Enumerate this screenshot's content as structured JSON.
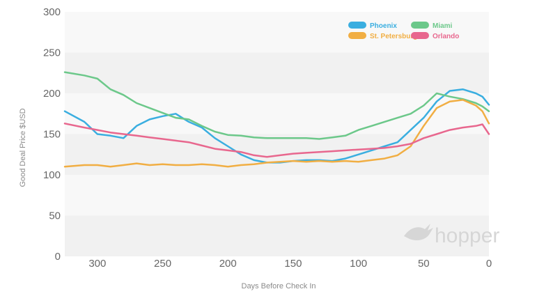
{
  "chart_data": {
    "type": "line",
    "xlabel": "Days Before Check In",
    "ylabel": "Good Deal Price $USD",
    "xlim": [
      325,
      0
    ],
    "ylim": [
      0,
      300
    ],
    "x_ticks": [
      300,
      250,
      200,
      150,
      100,
      50,
      0
    ],
    "y_ticks": [
      0,
      50,
      100,
      150,
      200,
      250,
      300
    ],
    "grid": "alternating horizontal bands",
    "legend_position": "top-right",
    "watermark": "hopper",
    "x": [
      325,
      310,
      300,
      290,
      280,
      270,
      260,
      250,
      240,
      230,
      220,
      210,
      200,
      190,
      180,
      170,
      160,
      150,
      140,
      130,
      120,
      110,
      100,
      90,
      80,
      70,
      60,
      50,
      40,
      30,
      20,
      10,
      5,
      0
    ],
    "series": [
      {
        "name": "Phoenix",
        "color": "#3aaee0",
        "values": [
          178,
          165,
          150,
          148,
          145,
          160,
          168,
          172,
          175,
          165,
          158,
          145,
          135,
          125,
          118,
          115,
          115,
          117,
          118,
          118,
          117,
          120,
          125,
          130,
          135,
          140,
          155,
          170,
          190,
          203,
          205,
          200,
          196,
          186
        ]
      },
      {
        "name": "Miami",
        "color": "#6cc88a",
        "values": [
          226,
          222,
          218,
          205,
          198,
          188,
          182,
          176,
          170,
          168,
          160,
          153,
          149,
          148,
          146,
          145,
          145,
          145,
          145,
          144,
          146,
          148,
          155,
          160,
          165,
          170,
          175,
          185,
          200,
          196,
          193,
          188,
          184,
          178
        ]
      },
      {
        "name": "St. Petersburg",
        "color": "#f1ae43",
        "values": [
          110,
          112,
          112,
          110,
          112,
          114,
          112,
          113,
          112,
          112,
          113,
          112,
          110,
          112,
          113,
          115,
          116,
          117,
          116,
          117,
          116,
          117,
          116,
          118,
          120,
          124,
          135,
          160,
          182,
          190,
          192,
          185,
          178,
          163
        ]
      },
      {
        "name": "Orlando",
        "color": "#e8678e",
        "values": [
          163,
          158,
          155,
          152,
          150,
          148,
          146,
          144,
          142,
          140,
          136,
          132,
          130,
          128,
          124,
          122,
          124,
          126,
          127,
          128,
          129,
          130,
          131,
          132,
          133,
          135,
          138,
          145,
          150,
          155,
          158,
          160,
          162,
          150
        ]
      }
    ]
  }
}
